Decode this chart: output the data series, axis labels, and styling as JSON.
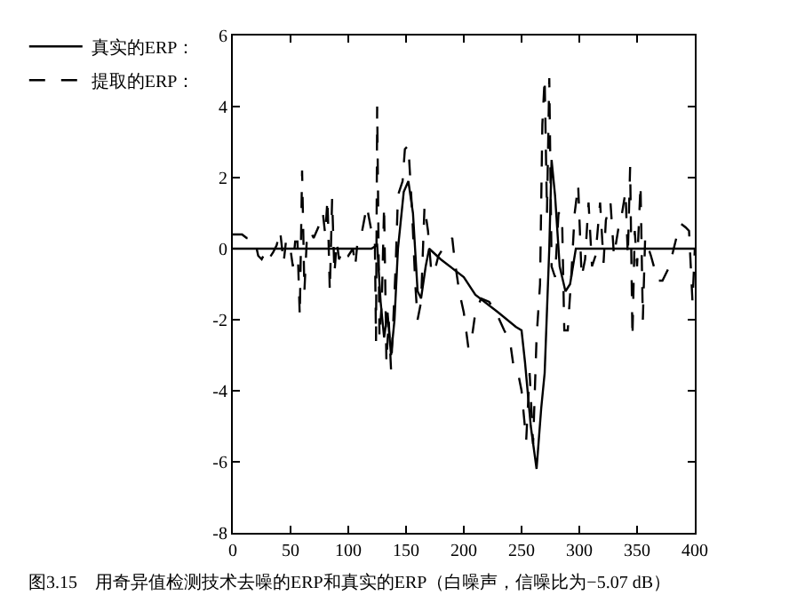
{
  "chart_data": {
    "type": "line",
    "annotations": [
      "图3.15　用奇异值检测技术去噪的ERP和真实的ERP（白噪声，信噪比为−5.07 dB）"
    ],
    "xlim": [
      0,
      400
    ],
    "xticks": [
      0,
      50,
      100,
      150,
      200,
      250,
      300,
      350,
      400
    ],
    "ylim": [
      -8,
      6
    ],
    "yticks": [
      -8,
      -6,
      -4,
      -2,
      0,
      2,
      4,
      6
    ],
    "grid": false,
    "legend": "top left",
    "marker": "none",
    "series": [
      {
        "name": "真实的ERP：",
        "color": "#000000",
        "line_style": "solid",
        "x": [
          0,
          120,
          125,
          128,
          131,
          134,
          137,
          140,
          143,
          148,
          152,
          156,
          160,
          163,
          167,
          170,
          180,
          200,
          210,
          230,
          245,
          250,
          253,
          258,
          263,
          267,
          270,
          274,
          276,
          279,
          283,
          288,
          292,
          297,
          400
        ],
        "values": [
          0,
          0,
          0.1,
          -1.5,
          -2.5,
          -1.8,
          -3.0,
          -2.0,
          0,
          1.6,
          1.9,
          1.0,
          -1.2,
          -1.4,
          -0.5,
          0,
          -0.3,
          -0.8,
          -1.3,
          -1.8,
          -2.2,
          -2.3,
          -3.2,
          -5.0,
          -6.2,
          -4.5,
          -3.5,
          0,
          2.5,
          1.5,
          -0.5,
          -1.2,
          -1.0,
          0,
          0
        ]
      },
      {
        "name": "提取的ERP：",
        "color": "#000000",
        "line_style": "dashed",
        "x": [
          0,
          8,
          12,
          17,
          20,
          22,
          25,
          28,
          31,
          35,
          38,
          41,
          44,
          46,
          49,
          52,
          54,
          56,
          58,
          60,
          62,
          64,
          67,
          70,
          74,
          78,
          80,
          82,
          84,
          86,
          88,
          90,
          92,
          96,
          100,
          104,
          106,
          108,
          112,
          116,
          120,
          123,
          124,
          125,
          127,
          129,
          131,
          133,
          135,
          137,
          139,
          141,
          143,
          147,
          149,
          152,
          155,
          158,
          160,
          163,
          166,
          169,
          172,
          175,
          178,
          182,
          186,
          190,
          192,
          196,
          200,
          204,
          207,
          210,
          215,
          222,
          228,
          235,
          240,
          243,
          247,
          250,
          254,
          257,
          260,
          263,
          266,
          268,
          270,
          272,
          274,
          276,
          279,
          282,
          285,
          287,
          290,
          293,
          296,
          299,
          302,
          305,
          308,
          311,
          314,
          318,
          321,
          323,
          327,
          330,
          334,
          337,
          340,
          342,
          344,
          346,
          348,
          350,
          353,
          355,
          357,
          362,
          368,
          372,
          378,
          384,
          388,
          392,
          395,
          398,
          400
        ],
        "values": [
          0.4,
          0.4,
          0.3,
          0.3,
          0.1,
          -0.2,
          -0.3,
          -0.1,
          -0.3,
          -0.1,
          0.1,
          0.5,
          -0.4,
          0.2,
          0.2,
          -0.5,
          0.2,
          0.2,
          -1.9,
          2.2,
          -1.2,
          0.2,
          0.5,
          0.3,
          0.6,
          1.0,
          0.4,
          1.4,
          -1.2,
          1.4,
          -0.7,
          0.2,
          -0.3,
          0,
          -0.2,
          0,
          -0.5,
          0.2,
          0.5,
          1.2,
          0.5,
          0.2,
          -2.6,
          4.0,
          -2.5,
          -1.5,
          1.2,
          -3.2,
          -2.0,
          -3.4,
          -2.0,
          -0.5,
          1.5,
          1.9,
          2.8,
          2.9,
          1.2,
          -1.0,
          -2.0,
          -1.5,
          1.2,
          0.5,
          -0.7,
          -0.6,
          -0.2,
          0.0,
          0.1,
          0.3,
          -0.3,
          -1.2,
          -1.8,
          -2.8,
          -2.5,
          -1.8,
          -1.4,
          -1.5,
          -1.8,
          -2.3,
          -2.6,
          -3.3,
          -3.5,
          -4.0,
          -5.4,
          -3.5,
          -5.5,
          -2.5,
          -1.0,
          3.5,
          4.8,
          1.0,
          4.8,
          -0.5,
          -0.8,
          1.0,
          1.0,
          -2.3,
          -2.3,
          -0.8,
          1.0,
          1.8,
          -0.8,
          -0.3,
          1.3,
          -0.5,
          -0.2,
          1.3,
          -0.4,
          0.8,
          1.3,
          -0.2,
          0.6,
          1.0,
          1.6,
          -0.2,
          2.3,
          -2.5,
          0.5,
          -0.5,
          1.8,
          -2.0,
          0.3,
          -0.2,
          -0.9,
          -0.9,
          -0.5,
          0.3,
          0.7,
          0.6,
          0.5,
          -1.5,
          0
        ]
      }
    ]
  }
}
